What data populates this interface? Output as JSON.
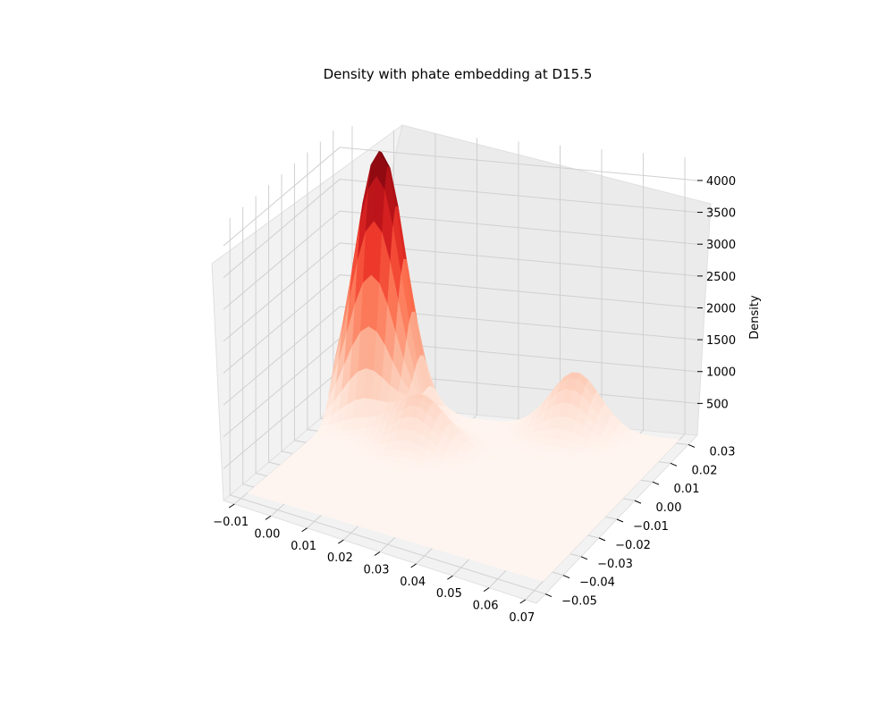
{
  "chart_data": {
    "type": "surface",
    "title": "Density with phate embedding at D15.5",
    "xlabel": "",
    "ylabel": "",
    "zlabel": "Density",
    "colormap": "Reds",
    "x_ticks": [
      "−0.01",
      "0.00",
      "0.01",
      "0.02",
      "0.03",
      "0.04",
      "0.05",
      "0.06",
      "0.07"
    ],
    "y_ticks": [
      "−0.05",
      "−0.04",
      "−0.03",
      "−0.02",
      "−0.01",
      "0.00",
      "0.01",
      "0.02",
      "0.03"
    ],
    "z_ticks": [
      "500",
      "1000",
      "1500",
      "2000",
      "2500",
      "3000",
      "3500",
      "4000"
    ],
    "xlim": [
      -0.013,
      0.073
    ],
    "ylim": [
      -0.055,
      0.035
    ],
    "zlim": [
      0,
      4350
    ],
    "peaks": [
      {
        "x": 0.0,
        "y": 0.025,
        "z": 4250
      },
      {
        "x": 0.015,
        "y": 0.01,
        "z": 800
      },
      {
        "x": 0.045,
        "y": 0.032,
        "z": 900
      }
    ],
    "grid": true
  }
}
